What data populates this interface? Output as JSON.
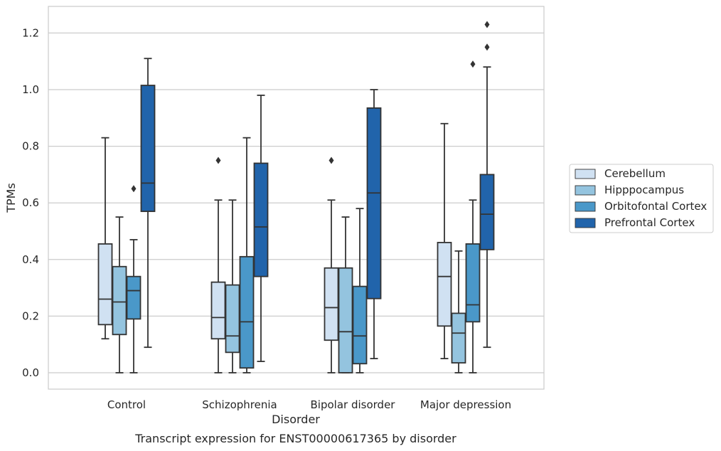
{
  "chart_data": {
    "type": "box",
    "title": "",
    "caption": "Transcript expression for ENST00000617365 by disorder",
    "xlabel": "Disorder",
    "ylabel": "TPMs",
    "ylim": [
      -0.06,
      1.29
    ],
    "yticks": [
      0.0,
      0.2,
      0.4,
      0.6,
      0.8,
      1.0,
      1.2
    ],
    "ytick_labels": [
      "0.0",
      "0.2",
      "0.4",
      "0.6",
      "0.8",
      "1.0",
      "1.2"
    ],
    "grid": "horizontal",
    "legend": {
      "position": "right"
    },
    "categories": [
      "Control",
      "Schizophrenia",
      "Bipolar disorder",
      "Major depression"
    ],
    "series": [
      {
        "name": "Cerebellum",
        "color": "#d0e1f2",
        "boxes": [
          {
            "whisker_low": 0.12,
            "q1": 0.17,
            "median": 0.26,
            "q3": 0.455,
            "whisker_high": 0.83,
            "outliers": []
          },
          {
            "whisker_low": 0.0,
            "q1": 0.12,
            "median": 0.195,
            "q3": 0.32,
            "whisker_high": 0.61,
            "outliers": [
              0.75
            ]
          },
          {
            "whisker_low": 0.0,
            "q1": 0.115,
            "median": 0.23,
            "q3": 0.37,
            "whisker_high": 0.61,
            "outliers": [
              0.75
            ]
          },
          {
            "whisker_low": 0.05,
            "q1": 0.165,
            "median": 0.34,
            "q3": 0.46,
            "whisker_high": 0.88,
            "outliers": []
          }
        ]
      },
      {
        "name": "Hipppocampus",
        "color": "#94c4df",
        "boxes": [
          {
            "whisker_low": 0.0,
            "q1": 0.135,
            "median": 0.25,
            "q3": 0.375,
            "whisker_high": 0.55,
            "outliers": []
          },
          {
            "whisker_low": 0.0,
            "q1": 0.072,
            "median": 0.13,
            "q3": 0.31,
            "whisker_high": 0.61,
            "outliers": []
          },
          {
            "whisker_low": 0.0,
            "q1": 0.0,
            "median": 0.145,
            "q3": 0.37,
            "whisker_high": 0.55,
            "outliers": []
          },
          {
            "whisker_low": 0.0,
            "q1": 0.035,
            "median": 0.14,
            "q3": 0.21,
            "whisker_high": 0.43,
            "outliers": []
          }
        ]
      },
      {
        "name": "Orbitofontal Cortex",
        "color": "#4a98c9",
        "boxes": [
          {
            "whisker_low": 0.0,
            "q1": 0.19,
            "median": 0.29,
            "q3": 0.34,
            "whisker_high": 0.47,
            "outliers": [
              0.65
            ]
          },
          {
            "whisker_low": 0.0,
            "q1": 0.017,
            "median": 0.18,
            "q3": 0.41,
            "whisker_high": 0.83,
            "outliers": []
          },
          {
            "whisker_low": 0.0,
            "q1": 0.032,
            "median": 0.13,
            "q3": 0.305,
            "whisker_high": 0.58,
            "outliers": []
          },
          {
            "whisker_low": 0.0,
            "q1": 0.18,
            "median": 0.24,
            "q3": 0.455,
            "whisker_high": 0.61,
            "outliers": [
              1.09
            ]
          }
        ]
      },
      {
        "name": "Prefrontal Cortex",
        "color": "#2164ab",
        "boxes": [
          {
            "whisker_low": 0.09,
            "q1": 0.57,
            "median": 0.67,
            "q3": 1.015,
            "whisker_high": 1.11,
            "outliers": []
          },
          {
            "whisker_low": 0.04,
            "q1": 0.34,
            "median": 0.515,
            "q3": 0.74,
            "whisker_high": 0.98,
            "outliers": []
          },
          {
            "whisker_low": 0.05,
            "q1": 0.262,
            "median": 0.635,
            "q3": 0.935,
            "whisker_high": 1.0,
            "outliers": []
          },
          {
            "whisker_low": 0.09,
            "q1": 0.435,
            "median": 0.56,
            "q3": 0.7,
            "whisker_high": 1.08,
            "outliers": [
              1.15,
              1.23
            ]
          }
        ]
      }
    ]
  }
}
